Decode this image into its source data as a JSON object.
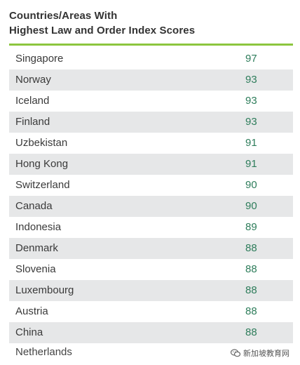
{
  "title": {
    "line1": "Countries/Areas With",
    "line2": "Highest Law and Order Index Scores"
  },
  "accent_color": "#8cc63f",
  "score_color": "#2e7d5b",
  "rows": [
    {
      "country": "Singapore",
      "score": "97"
    },
    {
      "country": "Norway",
      "score": "93"
    },
    {
      "country": "Iceland",
      "score": "93"
    },
    {
      "country": "Finland",
      "score": "93"
    },
    {
      "country": "Uzbekistan",
      "score": "91"
    },
    {
      "country": "Hong Kong",
      "score": "91"
    },
    {
      "country": "Switzerland",
      "score": "90"
    },
    {
      "country": "Canada",
      "score": "90"
    },
    {
      "country": "Indonesia",
      "score": "89"
    },
    {
      "country": "Denmark",
      "score": "88"
    },
    {
      "country": "Slovenia",
      "score": "88"
    },
    {
      "country": "Luxembourg",
      "score": "88"
    },
    {
      "country": "Austria",
      "score": "88"
    },
    {
      "country": "China",
      "score": "88"
    }
  ],
  "partial_row": {
    "country": "Netherlands"
  },
  "watermark": {
    "icon": "wechat-icon",
    "text": "新加坡教育网"
  }
}
